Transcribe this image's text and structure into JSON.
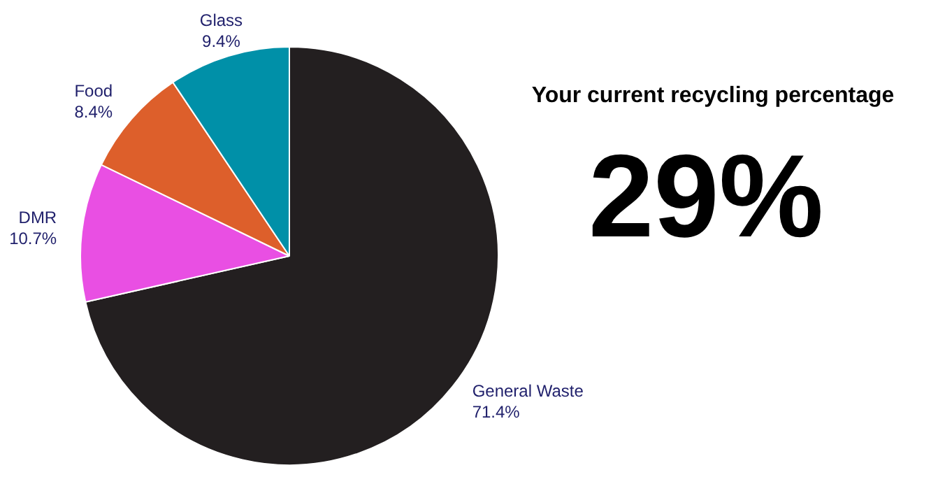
{
  "chart_data": [
    {
      "type": "pie",
      "categories": [
        "General Waste",
        "DMR",
        "Food",
        "Glass"
      ],
      "values": [
        71.4,
        10.7,
        8.4,
        9.4
      ],
      "colors": [
        "#231f20",
        "#e94fe3",
        "#dd5f2b",
        "#0090a8"
      ],
      "value_labels": [
        "71.4%",
        "10.7%",
        "8.4%",
        "9.4%"
      ],
      "legend": false
    },
    {
      "type": "other",
      "title": "Your current recycling percentage",
      "annotations": [
        "29%"
      ]
    }
  ]
}
